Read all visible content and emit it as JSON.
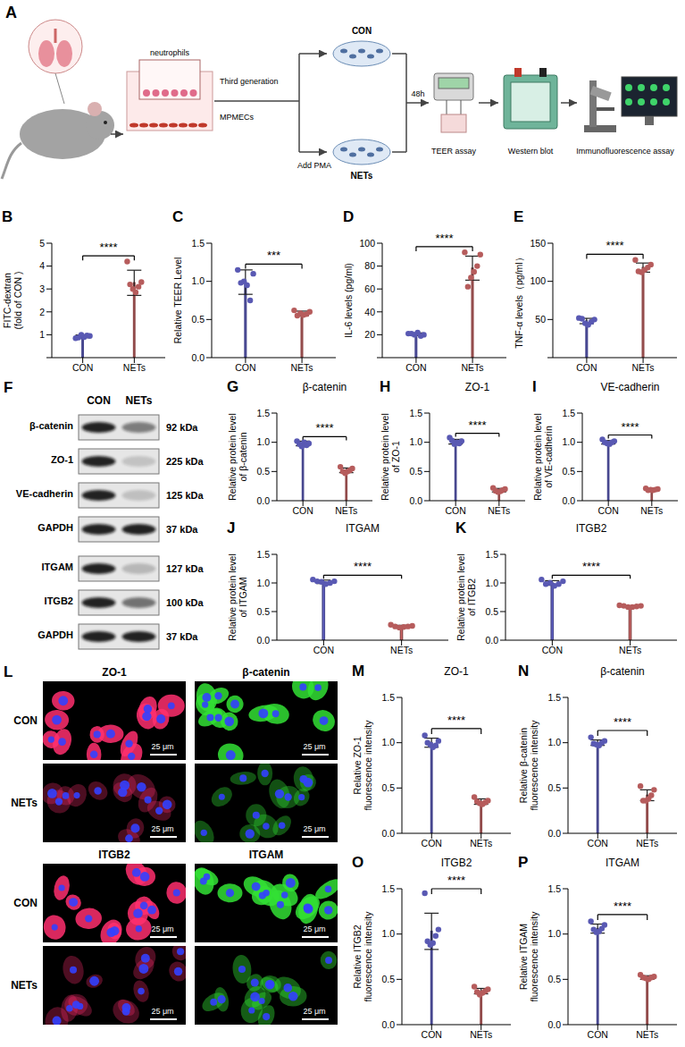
{
  "panel_a": {
    "letter": "A",
    "transwell": [
      "neutrophils",
      "Third generation",
      "MPMECs"
    ],
    "groups": [
      "CON",
      "NETs"
    ],
    "treatment": "Add PMA",
    "duration": "48h",
    "assays": [
      "TEER assay",
      "Western blot",
      "Immunofluorescence assay"
    ]
  },
  "chart_data": [
    {
      "panel": "B",
      "type": "bar",
      "y_label": [
        "FITC-dextran",
        "(fold of CON )"
      ],
      "categories": [
        "CON",
        "NETs"
      ],
      "values": [
        0.93,
        3.27
      ],
      "errors": [
        0.06,
        0.55
      ],
      "points": [
        [
          0.85,
          0.95,
          0.97,
          0.9,
          1.0,
          0.88
        ],
        [
          4.2,
          3.3,
          3.1,
          2.85,
          3.0,
          3.2
        ]
      ],
      "colors": [
        "#7676ee",
        "#f27b7b"
      ],
      "ylim": [
        0,
        5
      ],
      "yticks": [
        0,
        1,
        2,
        3,
        4,
        5
      ],
      "annotation": "****"
    },
    {
      "panel": "C",
      "type": "bar",
      "y_label": [
        "Relative TEER Level"
      ],
      "categories": [
        "CON",
        "NETs"
      ],
      "values": [
        0.99,
        0.58
      ],
      "errors": [
        0.16,
        0.03
      ],
      "points": [
        [
          1.15,
          1.1,
          0.75,
          0.95,
          1.0,
          0.98
        ],
        [
          0.62,
          0.6,
          0.57,
          0.56,
          0.58,
          0.55
        ]
      ],
      "colors": [
        "#7676ee",
        "#f27b7b"
      ],
      "ylim": [
        0,
        1.5
      ],
      "yticks": [
        {
          "value": 0,
          "label": "0.0"
        },
        0.5,
        {
          "value": 1,
          "label": "1.0"
        },
        1.5
      ],
      "annotation": "***"
    },
    {
      "panel": "D",
      "type": "bar",
      "y_label": [
        "IL-6 levels (pg/ml)"
      ],
      "categories": [
        "CON",
        "NETs"
      ],
      "values": [
        20.5,
        78.2
      ],
      "errors": [
        1.1,
        10.5
      ],
      "points": [
        [
          21,
          20,
          19,
          22,
          20,
          21
        ],
        [
          92,
          90,
          80,
          75,
          70,
          62
        ]
      ],
      "colors": [
        "#7676ee",
        "#f27b7b"
      ],
      "ylim": [
        0,
        100
      ],
      "yticks": [
        0,
        20,
        40,
        60,
        80,
        100
      ],
      "annotation": "****"
    },
    {
      "panel": "E",
      "type": "bar",
      "y_label": [
        "TNF-α levels（pg/ml）"
      ],
      "categories": [
        "CON",
        "NETs"
      ],
      "values": [
        48,
        118
      ],
      "errors": [
        3.5,
        6
      ],
      "points": [
        [
          52,
          50,
          47,
          43,
          45,
          51
        ],
        [
          128,
          122,
          118,
          115,
          112,
          113
        ]
      ],
      "colors": [
        "#7676ee",
        "#f27b7b"
      ],
      "ylim": [
        0,
        150
      ],
      "yticks": [
        0,
        50,
        100,
        150
      ],
      "annotation": "****"
    },
    {
      "panel": "G",
      "type": "bar",
      "title": "β-catenin",
      "y_label": [
        "Relative protein level",
        "of β-catenin"
      ],
      "categories": [
        "CON",
        "NETs"
      ],
      "values": [
        0.98,
        0.52
      ],
      "errors": [
        0.04,
        0.04
      ],
      "points": [
        [
          1.02,
          0.98,
          0.95,
          1.0,
          0.93,
          0.97
        ],
        [
          0.58,
          0.55,
          0.52,
          0.5,
          0.47,
          0.5
        ]
      ],
      "colors": [
        "#7676ee",
        "#f27b7b"
      ],
      "ylim": [
        0,
        1.5
      ],
      "yticks": [
        {
          "value": 0,
          "label": "0.0"
        },
        0.5,
        {
          "value": 1,
          "label": "1.0"
        },
        1.5
      ],
      "annotation": "****"
    },
    {
      "panel": "H",
      "type": "bar",
      "title": "ZO-1",
      "y_label": [
        "Relative protein level",
        "of ZO-1"
      ],
      "categories": [
        "CON",
        "NETs"
      ],
      "values": [
        1.01,
        0.18
      ],
      "errors": [
        0.04,
        0.03
      ],
      "points": [
        [
          1.08,
          1.02,
          0.98,
          1.0,
          0.97,
          1.03
        ],
        [
          0.22,
          0.2,
          0.18,
          0.16,
          0.15,
          0.17
        ]
      ],
      "colors": [
        "#7676ee",
        "#f27b7b"
      ],
      "ylim": [
        0,
        1.5
      ],
      "yticks": [
        {
          "value": 0,
          "label": "0.0"
        },
        0.5,
        {
          "value": 1,
          "label": "1.0"
        },
        1.5
      ],
      "annotation": "****"
    },
    {
      "panel": "I",
      "type": "bar",
      "title": "VE-cadherin",
      "y_label": [
        "Relative protein level",
        "of VE-cadherin"
      ],
      "categories": [
        "CON",
        "NETs"
      ],
      "values": [
        1.0,
        0.19
      ],
      "errors": [
        0.03,
        0.01
      ],
      "points": [
        [
          1.05,
          1.02,
          1.0,
          0.97,
          0.98,
          1.0
        ],
        [
          0.21,
          0.2,
          0.19,
          0.18,
          0.19,
          0.18
        ]
      ],
      "colors": [
        "#7676ee",
        "#f27b7b"
      ],
      "ylim": [
        0,
        1.5
      ],
      "yticks": [
        {
          "value": 0,
          "label": "0.0"
        },
        0.5,
        {
          "value": 1,
          "label": "1.0"
        },
        1.5
      ],
      "annotation": "****"
    },
    {
      "panel": "J",
      "type": "bar",
      "title": "ITGAM",
      "y_label": [
        "Relative protein level",
        "of ITGAM"
      ],
      "categories": [
        "CON",
        "NETs"
      ],
      "values": [
        1.02,
        0.24
      ],
      "errors": [
        0.03,
        0.02
      ],
      "points": [
        [
          1.06,
          1.03,
          1.0,
          0.98,
          1.02,
          1.03
        ],
        [
          0.27,
          0.25,
          0.24,
          0.23,
          0.22,
          0.24
        ]
      ],
      "colors": [
        "#7676ee",
        "#f27b7b"
      ],
      "ylim": [
        0,
        1.5
      ],
      "yticks": [
        {
          "value": 0,
          "label": "0.0"
        },
        0.5,
        {
          "value": 1,
          "label": "1.0"
        },
        1.5
      ],
      "annotation": "****"
    },
    {
      "panel": "K",
      "type": "bar",
      "title": "ITGB2",
      "y_label": [
        "Relative protein level",
        "of ITGB2"
      ],
      "categories": [
        "CON",
        "NETs"
      ],
      "values": [
        1.0,
        0.59
      ],
      "errors": [
        0.04,
        0.01
      ],
      "points": [
        [
          1.06,
          1.03,
          0.98,
          0.95,
          1.0,
          0.98
        ],
        [
          0.61,
          0.6,
          0.59,
          0.58,
          0.58,
          0.6
        ]
      ],
      "colors": [
        "#7676ee",
        "#f27b7b"
      ],
      "ylim": [
        0,
        1.5
      ],
      "yticks": [
        {
          "value": 0,
          "label": "0.0"
        },
        0.5,
        {
          "value": 1,
          "label": "1.0"
        },
        1.5
      ],
      "annotation": "****"
    },
    {
      "panel": "M",
      "type": "bar",
      "title": "ZO-1",
      "y_label": [
        "Relative ZO-1",
        "fluorescence intensity"
      ],
      "categories": [
        "CON",
        "NETs"
      ],
      "values": [
        1.0,
        0.35
      ],
      "errors": [
        0.05,
        0.03
      ],
      "points": [
        [
          1.08,
          1.02,
          0.97,
          0.95,
          0.98,
          1.0
        ],
        [
          0.4,
          0.36,
          0.34,
          0.32,
          0.33,
          0.35
        ]
      ],
      "colors": [
        "#7676ee",
        "#f27b7b"
      ],
      "ylim": [
        0,
        1.5
      ],
      "yticks": [
        {
          "value": 0,
          "label": "0.0"
        },
        0.5,
        {
          "value": 1,
          "label": "1.0"
        },
        1.5
      ],
      "annotation": "****"
    },
    {
      "panel": "N",
      "type": "bar",
      "title": "β-catenin",
      "y_label": [
        "Relative β-catenin",
        "fluorescence intensity"
      ],
      "categories": [
        "CON",
        "NETs"
      ],
      "values": [
        1.0,
        0.42
      ],
      "errors": [
        0.03,
        0.06
      ],
      "points": [
        [
          1.06,
          1.02,
          1.0,
          0.97,
          0.98,
          0.99
        ],
        [
          0.52,
          0.48,
          0.42,
          0.38,
          0.36,
          0.36
        ]
      ],
      "colors": [
        "#7676ee",
        "#f27b7b"
      ],
      "ylim": [
        0,
        1.5
      ],
      "yticks": [
        {
          "value": 0,
          "label": "0.0"
        },
        0.5,
        {
          "value": 1,
          "label": "1.0"
        },
        1.5
      ],
      "annotation": "****"
    },
    {
      "panel": "O",
      "type": "bar",
      "title": "ITGB2",
      "y_label": [
        "Relative ITGB2",
        "fluorescence intensity"
      ],
      "categories": [
        "CON",
        "NETs"
      ],
      "values": [
        1.03,
        0.37
      ],
      "errors": [
        0.2,
        0.03
      ],
      "points": [
        [
          1.45,
          1.05,
          0.98,
          0.9,
          0.88,
          0.92
        ],
        [
          0.42,
          0.39,
          0.37,
          0.35,
          0.33,
          0.36
        ]
      ],
      "colors": [
        "#7676ee",
        "#f27b7b"
      ],
      "ylim": [
        0,
        1.5
      ],
      "yticks": [
        {
          "value": 0,
          "label": "0.0"
        },
        0.5,
        {
          "value": 1,
          "label": "1.0"
        },
        1.5
      ],
      "annotation": "****"
    },
    {
      "panel": "P",
      "type": "bar",
      "title": "ITGAM",
      "y_label": [
        "Relative ITGAM",
        "fluorescence intensity"
      ],
      "categories": [
        "CON",
        "NETs"
      ],
      "values": [
        1.06,
        0.52
      ],
      "errors": [
        0.05,
        0.02
      ],
      "points": [
        [
          1.14,
          1.1,
          1.06,
          1.03,
          1.02,
          1.05
        ],
        [
          0.55,
          0.53,
          0.52,
          0.5,
          0.51,
          0.52
        ]
      ],
      "colors": [
        "#7676ee",
        "#f27b7b"
      ],
      "ylim": [
        0,
        1.5
      ],
      "yticks": [
        {
          "value": 0,
          "label": "0.0"
        },
        0.5,
        {
          "value": 1,
          "label": "1.0"
        },
        1.5
      ],
      "annotation": "****"
    }
  ],
  "panel_f": {
    "letter": "F",
    "lanes": [
      "CON",
      "NETs"
    ],
    "rows": [
      {
        "protein": "β-catenin",
        "size": "92 kDa"
      },
      {
        "protein": "ZO-1",
        "size": "225 kDa"
      },
      {
        "protein": "VE-cadherin",
        "size": "125 kDa"
      },
      {
        "protein": "GAPDH",
        "size": "37 kDa"
      },
      {
        "protein": "ITGAM",
        "size": "127 kDa"
      },
      {
        "protein": "ITGB2",
        "size": "100 kDa"
      },
      {
        "protein": "GAPDH",
        "size": "37 kDa"
      }
    ]
  },
  "panel_l": {
    "letter": "L",
    "groups": [
      {
        "columns": [
          "ZO-1",
          "β-catenin"
        ],
        "rows": [
          "CON",
          "NETs"
        ]
      },
      {
        "columns": [
          "ITGB2",
          "ITGAM"
        ],
        "rows": [
          "CON",
          "NETs"
        ]
      }
    ],
    "scale_bar": "25 μm"
  }
}
